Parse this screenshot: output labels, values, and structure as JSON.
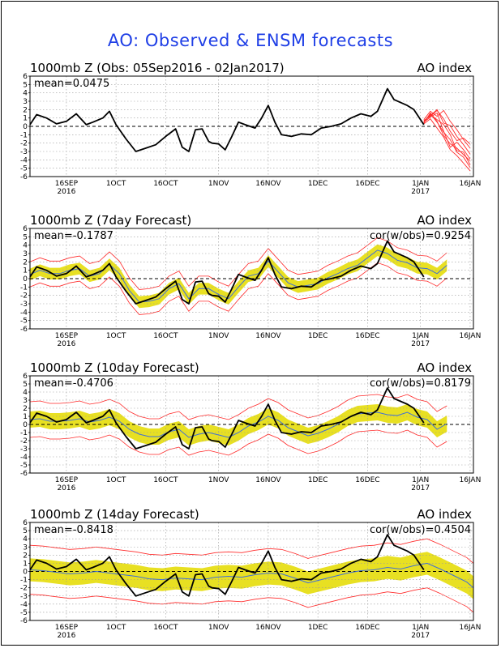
{
  "page": {
    "title": "AO: Observed & ENSM forecasts"
  },
  "colors": {
    "title": "#1f3fe6",
    "obs": "#000000",
    "ens": "#ff2a2a",
    "band": "#e8e022",
    "mean": "#3f6fd8",
    "zero": "#000000",
    "grid": "#9a9a9a"
  },
  "chart_data": [
    {
      "type": "line",
      "title": "1000mb Z (Obs: 05Sep2016 - 02Jan2017)",
      "right_label": "AO index",
      "stat_left": "mean=0.0475",
      "stat_right": "",
      "ylim": [
        -6,
        6
      ],
      "y_ticks": [
        "6",
        "5",
        "4",
        "3",
        "2",
        "1",
        "0",
        "-1",
        "-2",
        "-3",
        "-4",
        "-5",
        "-6"
      ],
      "x_ticks": [
        {
          "day": 11,
          "label": "16SEP",
          "sub": "2016"
        },
        {
          "day": 26,
          "label": "1OCT",
          "sub": ""
        },
        {
          "day": 41,
          "label": "16OCT",
          "sub": ""
        },
        {
          "day": 57,
          "label": "1NOV",
          "sub": ""
        },
        {
          "day": 72,
          "label": "16NOV",
          "sub": ""
        },
        {
          "day": 87,
          "label": "1DEC",
          "sub": ""
        },
        {
          "day": 102,
          "label": "16DEC",
          "sub": ""
        },
        {
          "day": 118,
          "label": "1JAN",
          "sub": "2017"
        },
        {
          "day": 133,
          "label": "16JAN",
          "sub": ""
        }
      ],
      "obs": {
        "x": [
          0,
          2,
          5,
          8,
          11,
          14,
          17,
          19,
          22,
          24,
          26,
          29,
          32,
          35,
          38,
          41,
          44,
          46,
          48,
          50,
          52,
          54,
          55,
          57,
          59,
          61,
          63,
          65,
          68,
          70,
          72,
          74,
          76,
          79,
          82,
          85,
          88,
          91,
          94,
          97,
          100,
          103,
          105,
          108,
          110,
          114,
          116,
          119
        ],
        "y": [
          0.2,
          1.4,
          1.0,
          0.3,
          0.6,
          1.5,
          0.2,
          0.5,
          1.0,
          1.8,
          0.2,
          -1.5,
          -3.0,
          -2.6,
          -2.2,
          -1.2,
          -0.3,
          -2.5,
          -3.0,
          -0.4,
          -0.3,
          -1.8,
          -2.0,
          -2.1,
          -2.8,
          -1.2,
          0.5,
          0.2,
          -0.2,
          1.0,
          2.5,
          0.5,
          -1.0,
          -1.2,
          -0.9,
          -1.0,
          -0.2,
          0.0,
          0.3,
          1.0,
          1.5,
          1.2,
          1.8,
          4.5,
          3.2,
          2.5,
          2.0,
          0.2
        ]
      },
      "ens_members": [
        {
          "x": [
            119,
            121,
            123,
            125,
            127,
            129,
            131,
            133
          ],
          "y": [
            0.4,
            1.6,
            0.6,
            -1.1,
            -2.1,
            -2.6,
            -3.4,
            -4.1
          ]
        },
        {
          "x": [
            119,
            121,
            123,
            125,
            127,
            129,
            131,
            133
          ],
          "y": [
            0.6,
            1.3,
            2.0,
            0.4,
            0.1,
            -1.2,
            -2.2,
            -3.3
          ]
        },
        {
          "x": [
            119,
            121,
            123,
            125,
            127,
            129,
            131,
            133
          ],
          "y": [
            0.5,
            1.1,
            1.6,
            -0.6,
            -2.5,
            -1.9,
            -2.8,
            -3.9
          ]
        },
        {
          "x": [
            119,
            121,
            123,
            125,
            127,
            129,
            131,
            133
          ],
          "y": [
            0.8,
            1.8,
            1.2,
            1.9,
            0.6,
            -0.4,
            -1.6,
            -2.6
          ]
        },
        {
          "x": [
            119,
            121,
            123,
            125,
            127,
            129,
            131,
            133
          ],
          "y": [
            0.3,
            0.9,
            -0.2,
            -1.3,
            -2.8,
            -3.5,
            -4.4,
            -5.3
          ]
        },
        {
          "x": [
            119,
            121,
            123,
            125,
            127,
            129,
            131,
            133
          ],
          "y": [
            0.5,
            1.4,
            0.8,
            0.2,
            -1.0,
            -2.9,
            -3.1,
            -4.6
          ]
        },
        {
          "x": [
            119,
            121,
            123,
            125,
            127,
            129,
            131,
            133
          ],
          "y": [
            0.7,
            1.2,
            1.9,
            0.9,
            -0.6,
            -1.7,
            -1.4,
            -2.1
          ]
        },
        {
          "x": [
            119,
            121,
            123,
            125,
            127,
            129,
            131,
            133
          ],
          "y": [
            0.4,
            1.5,
            0.5,
            -0.7,
            -1.6,
            -3.1,
            -3.7,
            -4.9
          ]
        }
      ]
    },
    {
      "type": "line",
      "title": "1000mb Z (7day Forecast)",
      "right_label": "AO index",
      "stat_left": "mean=-0.1787",
      "stat_right": "cor(w/obs)=0.9254",
      "ylim": [
        -6,
        6
      ],
      "y_ticks": [
        "6",
        "5",
        "4",
        "3",
        "2",
        "1",
        "0",
        "-1",
        "-2",
        "-3",
        "-4",
        "-5",
        "-6"
      ],
      "x_ticks": [
        {
          "day": 11,
          "label": "16SEP",
          "sub": "2016"
        },
        {
          "day": 26,
          "label": "1OCT",
          "sub": ""
        },
        {
          "day": 41,
          "label": "16OCT",
          "sub": ""
        },
        {
          "day": 57,
          "label": "1NOV",
          "sub": ""
        },
        {
          "day": 72,
          "label": "16NOV",
          "sub": ""
        },
        {
          "day": 87,
          "label": "1DEC",
          "sub": ""
        },
        {
          "day": 102,
          "label": "16DEC",
          "sub": ""
        },
        {
          "day": 118,
          "label": "1JAN",
          "sub": "2017"
        },
        {
          "day": 133,
          "label": "16JAN",
          "sub": ""
        }
      ],
      "forecast": {
        "x": [
          0,
          3,
          6,
          9,
          12,
          15,
          18,
          21,
          24,
          27,
          30,
          33,
          36,
          39,
          42,
          45,
          48,
          51,
          54,
          57,
          60,
          63,
          66,
          69,
          72,
          75,
          78,
          81,
          84,
          87,
          90,
          93,
          96,
          99,
          102,
          105,
          108,
          111,
          114,
          117,
          120,
          123,
          126
        ],
        "mean": [
          0.5,
          1.0,
          0.6,
          0.6,
          1.0,
          1.2,
          0.3,
          0.6,
          1.7,
          0.6,
          -1.4,
          -2.8,
          -2.7,
          -2.4,
          -1.2,
          -0.6,
          -2.4,
          -1.2,
          -1.2,
          -1.9,
          -2.4,
          -1.0,
          0.3,
          0.6,
          2.1,
          0.8,
          -0.5,
          -1.0,
          -0.8,
          -0.6,
          0.1,
          0.6,
          1.2,
          1.6,
          2.5,
          3.4,
          3.0,
          2.2,
          1.9,
          1.3,
          1.2,
          0.6,
          1.6
        ],
        "band_half": 0.7,
        "outer_half": 1.5
      },
      "obs": {
        "x": [
          0,
          2,
          5,
          8,
          11,
          14,
          17,
          19,
          22,
          24,
          26,
          29,
          32,
          35,
          38,
          41,
          44,
          46,
          48,
          50,
          52,
          54,
          55,
          57,
          59,
          61,
          63,
          65,
          68,
          70,
          72,
          74,
          76,
          79,
          82,
          85,
          88,
          91,
          94,
          97,
          100,
          103,
          105,
          108,
          110,
          114,
          116,
          119
        ],
        "y": [
          0.2,
          1.4,
          1.0,
          0.3,
          0.6,
          1.5,
          0.2,
          0.5,
          1.0,
          1.8,
          0.2,
          -1.5,
          -3.0,
          -2.6,
          -2.2,
          -1.2,
          -0.3,
          -2.5,
          -3.0,
          -0.4,
          -0.3,
          -1.8,
          -2.0,
          -2.1,
          -2.8,
          -1.2,
          0.5,
          0.2,
          -0.2,
          1.0,
          2.5,
          0.5,
          -1.0,
          -1.2,
          -0.9,
          -1.0,
          -0.2,
          0.0,
          0.3,
          1.0,
          1.5,
          1.2,
          1.8,
          4.5,
          3.2,
          2.5,
          2.0,
          0.2
        ]
      }
    },
    {
      "type": "line",
      "title": "1000mb Z (10day Forecast)",
      "right_label": "AO index",
      "stat_left": "mean=-0.4706",
      "stat_right": "cor(w/obs)=0.8179",
      "ylim": [
        -6,
        6
      ],
      "y_ticks": [
        "6",
        "5",
        "4",
        "3",
        "2",
        "1",
        "0",
        "-1",
        "-2",
        "-3",
        "-4",
        "-5",
        "-6"
      ],
      "x_ticks": [
        {
          "day": 11,
          "label": "16SEP",
          "sub": "2016"
        },
        {
          "day": 26,
          "label": "1OCT",
          "sub": ""
        },
        {
          "day": 41,
          "label": "16OCT",
          "sub": ""
        },
        {
          "day": 57,
          "label": "1NOV",
          "sub": ""
        },
        {
          "day": 72,
          "label": "16NOV",
          "sub": ""
        },
        {
          "day": 87,
          "label": "1DEC",
          "sub": ""
        },
        {
          "day": 102,
          "label": "16DEC",
          "sub": ""
        },
        {
          "day": 118,
          "label": "1JAN",
          "sub": "2017"
        },
        {
          "day": 133,
          "label": "16JAN",
          "sub": ""
        }
      ],
      "forecast": {
        "x": [
          0,
          3,
          6,
          9,
          12,
          15,
          18,
          21,
          24,
          27,
          30,
          33,
          36,
          39,
          42,
          45,
          48,
          51,
          54,
          57,
          60,
          63,
          66,
          69,
          72,
          75,
          78,
          81,
          84,
          87,
          90,
          93,
          96,
          99,
          102,
          105,
          108,
          111,
          114,
          117,
          120,
          123,
          126
        ],
        "mean": [
          0.6,
          0.7,
          0.4,
          0.4,
          0.5,
          0.7,
          0.3,
          0.5,
          0.9,
          0.4,
          -0.6,
          -1.2,
          -1.5,
          -1.5,
          -0.9,
          -0.6,
          -1.6,
          -1.2,
          -1.0,
          -1.3,
          -1.6,
          -1.0,
          -0.2,
          0.3,
          1.0,
          0.5,
          -0.4,
          -0.9,
          -1.4,
          -1.1,
          -0.6,
          0.0,
          0.8,
          1.3,
          1.4,
          1.5,
          1.2,
          1.1,
          1.5,
          0.9,
          0.6,
          -0.6,
          0.1
        ],
        "band_half": 1.0,
        "outer_half": 2.2
      },
      "obs": {
        "x": [
          0,
          2,
          5,
          8,
          11,
          14,
          17,
          19,
          22,
          24,
          26,
          29,
          32,
          35,
          38,
          41,
          44,
          46,
          48,
          50,
          52,
          54,
          55,
          57,
          59,
          61,
          63,
          65,
          68,
          70,
          72,
          74,
          76,
          79,
          82,
          85,
          88,
          91,
          94,
          97,
          100,
          103,
          105,
          108,
          110,
          114,
          116,
          119
        ],
        "y": [
          0.2,
          1.4,
          1.0,
          0.3,
          0.6,
          1.5,
          0.2,
          0.5,
          1.0,
          1.8,
          0.2,
          -1.5,
          -3.0,
          -2.6,
          -2.2,
          -1.2,
          -0.3,
          -2.5,
          -3.0,
          -0.4,
          -0.3,
          -1.8,
          -2.0,
          -2.1,
          -2.8,
          -1.2,
          0.5,
          0.2,
          -0.2,
          1.0,
          2.5,
          0.5,
          -1.0,
          -1.2,
          -0.9,
          -1.0,
          -0.2,
          0.0,
          0.3,
          1.0,
          1.5,
          1.2,
          1.8,
          4.5,
          3.2,
          2.5,
          2.0,
          0.2
        ]
      }
    },
    {
      "type": "line",
      "title": "1000mb Z (14day Forecast)",
      "right_label": "AO index",
      "stat_left": "mean=-0.8418",
      "stat_right": "cor(w/obs)=0.4504",
      "ylim": [
        -6,
        6
      ],
      "y_ticks": [
        "6",
        "5",
        "4",
        "3",
        "2",
        "1",
        "0",
        "-1",
        "-2",
        "-3",
        "-4",
        "-5",
        "-6"
      ],
      "x_ticks": [
        {
          "day": 11,
          "label": "16SEP",
          "sub": "2016"
        },
        {
          "day": 26,
          "label": "1OCT",
          "sub": ""
        },
        {
          "day": 41,
          "label": "16OCT",
          "sub": ""
        },
        {
          "day": 57,
          "label": "1NOV",
          "sub": ""
        },
        {
          "day": 72,
          "label": "16NOV",
          "sub": ""
        },
        {
          "day": 87,
          "label": "1DEC",
          "sub": ""
        },
        {
          "day": 102,
          "label": "16DEC",
          "sub": ""
        },
        {
          "day": 118,
          "label": "1JAN",
          "sub": "2017"
        },
        {
          "day": 133,
          "label": "16JAN",
          "sub": ""
        }
      ],
      "forecast": {
        "x": [
          0,
          4,
          8,
          12,
          16,
          20,
          24,
          28,
          32,
          36,
          40,
          44,
          48,
          52,
          56,
          60,
          64,
          68,
          72,
          76,
          80,
          84,
          88,
          92,
          96,
          100,
          104,
          108,
          112,
          116,
          120,
          124,
          128,
          132,
          134
        ],
        "mean": [
          0.2,
          0.1,
          -0.1,
          -0.3,
          -0.2,
          0.0,
          -0.2,
          -0.4,
          -0.6,
          -0.9,
          -1.0,
          -0.8,
          -0.9,
          -1.0,
          -0.7,
          -0.6,
          -0.7,
          -0.4,
          -0.2,
          -0.3,
          -0.8,
          -1.4,
          -1.0,
          -0.6,
          -0.2,
          0.1,
          0.2,
          0.5,
          0.3,
          0.7,
          1.0,
          0.3,
          -0.5,
          -1.3,
          -2.0
        ],
        "band_half": 1.4,
        "outer_half": 3.0
      },
      "obs": {
        "x": [
          0,
          2,
          5,
          8,
          11,
          14,
          17,
          19,
          22,
          24,
          26,
          29,
          32,
          35,
          38,
          41,
          44,
          46,
          48,
          50,
          52,
          54,
          55,
          57,
          59,
          61,
          63,
          65,
          68,
          70,
          72,
          74,
          76,
          79,
          82,
          85,
          88,
          91,
          94,
          97,
          100,
          103,
          105,
          108,
          110,
          114,
          116,
          119
        ],
        "y": [
          0.2,
          1.4,
          1.0,
          0.3,
          0.6,
          1.5,
          0.2,
          0.5,
          1.0,
          1.8,
          0.2,
          -1.5,
          -3.0,
          -2.6,
          -2.2,
          -1.2,
          -0.3,
          -2.5,
          -3.0,
          -0.4,
          -0.3,
          -1.8,
          -2.0,
          -2.1,
          -2.8,
          -1.2,
          0.5,
          0.2,
          -0.2,
          1.0,
          2.5,
          0.5,
          -1.0,
          -1.2,
          -0.9,
          -1.0,
          -0.2,
          0.0,
          0.3,
          1.0,
          1.5,
          1.2,
          1.8,
          4.5,
          3.2,
          2.5,
          2.0,
          0.2
        ]
      }
    }
  ]
}
